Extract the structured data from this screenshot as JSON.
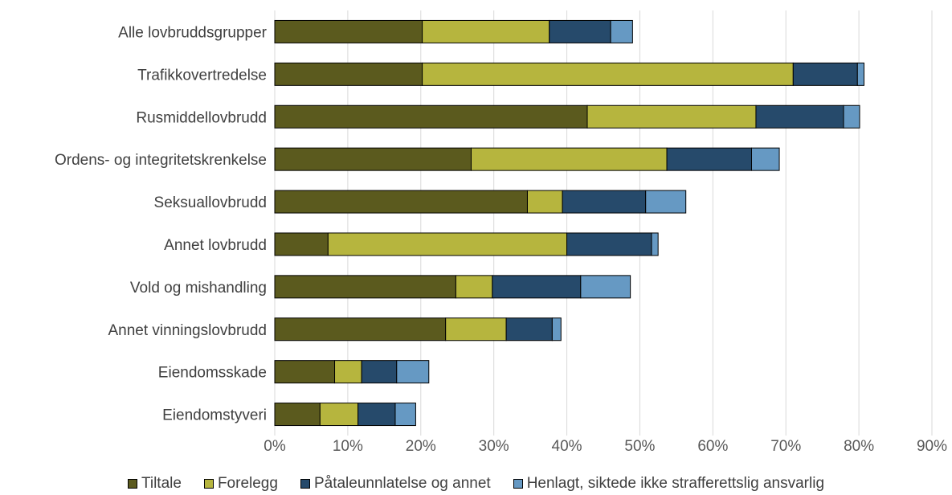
{
  "chart_data": {
    "type": "bar",
    "orientation": "horizontal",
    "stacked": true,
    "categories": [
      "Alle lovbruddsgrupper",
      "Trafikkovertredelse",
      "Rusmiddellovbrudd",
      "Ordens- og integritetskrenkelse",
      "Seksuallovbrudd",
      "Annet lovbrudd",
      "Vold og mishandling",
      "Annet vinningslovbrudd",
      "Eiendomsskade",
      "Eiendomstyveri"
    ],
    "series": [
      {
        "name": "Tiltale",
        "color": "#5b5a1e",
        "values": [
          20.2,
          20.2,
          42.8,
          26.9,
          34.6,
          7.3,
          24.8,
          23.4,
          8.2,
          6.2
        ]
      },
      {
        "name": "Forelegg",
        "color": "#b6b53e",
        "values": [
          17.4,
          50.8,
          23.1,
          26.8,
          4.8,
          32.7,
          5.0,
          8.3,
          3.7,
          5.2
        ]
      },
      {
        "name": "Påtaleunnlatelse og annet",
        "color": "#264a6b",
        "values": [
          8.4,
          8.8,
          12.0,
          11.6,
          11.4,
          11.6,
          12.1,
          6.3,
          4.8,
          5.1
        ]
      },
      {
        "name": "Henlagt, siktede ikke strafferettslig ansvarlig",
        "color": "#6699c3",
        "values": [
          3.0,
          0.9,
          2.2,
          3.8,
          5.5,
          0.9,
          6.8,
          1.2,
          4.4,
          2.8
        ]
      }
    ],
    "xlim": [
      0,
      90
    ],
    "xticks": [
      "0%",
      "10%",
      "20%",
      "30%",
      "40%",
      "50%",
      "60%",
      "70%",
      "80%",
      "90%"
    ],
    "xlabel": "",
    "ylabel": "",
    "title": "",
    "grid": "vertical",
    "legend_position": "bottom"
  }
}
